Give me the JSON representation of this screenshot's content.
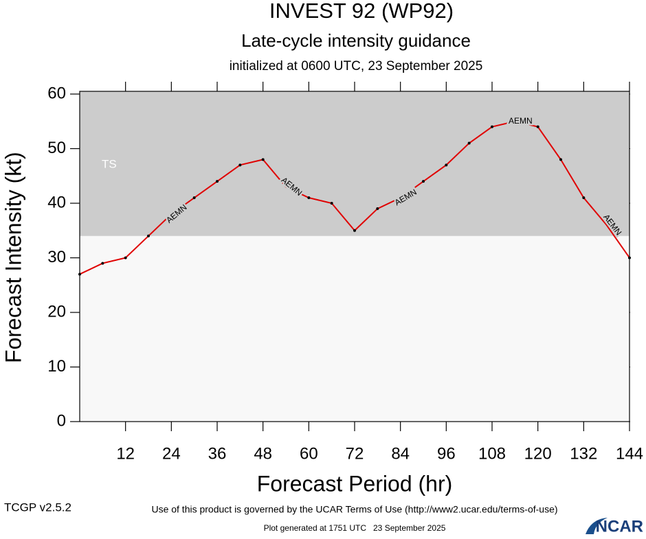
{
  "chart_data": {
    "type": "line",
    "title": "INVEST 92 (WP92)",
    "subtitle": "Late-cycle intensity guidance",
    "initialized": "initialized at 0600 UTC, 23 September 2025",
    "x_label": "Forecast Period (hr)",
    "y_label": "Forecast Intensity (kt)",
    "x": [
      0,
      6,
      12,
      18,
      24,
      30,
      36,
      42,
      48,
      54,
      60,
      66,
      72,
      78,
      84,
      90,
      96,
      102,
      108,
      114,
      120,
      126,
      132,
      138,
      144
    ],
    "series": [
      {
        "name": "AEMN",
        "color": "#e00000",
        "values": [
          27,
          29,
          30,
          34,
          38,
          41,
          44,
          47,
          48,
          43,
          41,
          40,
          35,
          39,
          41,
          44,
          47,
          51,
          54,
          55,
          54,
          48,
          41,
          36,
          30
        ]
      }
    ],
    "xlim": [
      0,
      144
    ],
    "xticks": [
      12,
      24,
      36,
      48,
      60,
      72,
      84,
      96,
      108,
      120,
      132,
      144
    ],
    "ylim": [
      0,
      60.5
    ],
    "yticks": [
      0,
      10,
      20,
      30,
      40,
      50,
      60
    ],
    "bands": [
      {
        "label": "TS",
        "from": 34,
        "to": 60.5,
        "color": "#cccccc"
      }
    ],
    "plot_background": "#f8f8f8"
  },
  "footer": {
    "terms": "Use of this product is governed by the UCAR Terms of Use (http://www2.ucar.edu/terms-of-use)",
    "version": "TCGP v2.5.2",
    "generated": "Plot generated at 1751 UTC   23 September 2025",
    "logo": "NCAR"
  }
}
